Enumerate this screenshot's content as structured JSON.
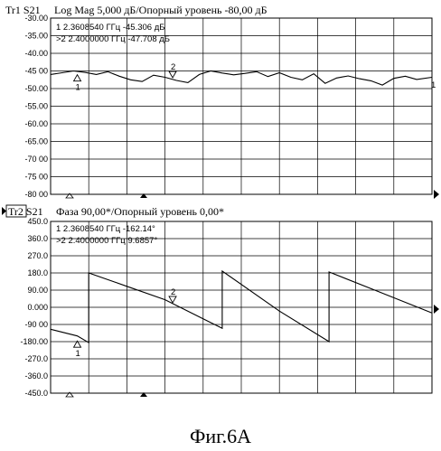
{
  "chart_data": [
    {
      "type": "line",
      "trace_label": "Tr1 S21",
      "title": "Log Mag 5,000 дБ/Опорный уровень -80,00 дБ",
      "y_ticks": [
        "-30.00",
        "-35.00",
        "-40.00",
        "-45 00",
        "-50.00",
        "-55.00",
        "-60.00",
        "-65.00",
        "-70 00",
        "-75 00",
        "-80 00"
      ],
      "ylim": [
        -80,
        -30
      ],
      "grid": true,
      "markers_text": [
        {
          "n": "1",
          "freq": "2.3608540 GHz",
          "text": "1   2.3608540 ГГц -45.306  дБ"
        },
        {
          "n": ">2",
          "freq": "2.4000000 GHz",
          "text": ">2  2.4000000 ГГц -47.708  дБ"
        }
      ],
      "markers": [
        {
          "label": "1",
          "x": 0.07,
          "y": -45.3
        },
        {
          "label": "2",
          "x": 0.32,
          "y": -47.7
        }
      ],
      "right_label": "1",
      "series": [
        {
          "x": [
            0,
            0.03,
            0.06,
            0.09,
            0.12,
            0.15,
            0.18,
            0.21,
            0.24,
            0.27,
            0.3,
            0.33,
            0.36,
            0.39,
            0.42,
            0.45,
            0.48,
            0.51,
            0.54,
            0.57,
            0.6,
            0.63,
            0.66,
            0.69,
            0.72,
            0.75,
            0.78,
            0.81,
            0.84,
            0.87,
            0.9,
            0.93,
            0.96,
            1.0
          ],
          "values": [
            -46,
            -45.5,
            -45,
            -45.4,
            -46,
            -45.2,
            -46.5,
            -47.5,
            -48,
            -46.2,
            -46.8,
            -47.7,
            -48.3,
            -46,
            -45,
            -45.6,
            -46.1,
            -45.7,
            -45.2,
            -46.6,
            -45.5,
            -46.8,
            -47.5,
            -45.8,
            -48.5,
            -47,
            -46.4,
            -47.2,
            -47.8,
            -49,
            -47.1,
            -46.5,
            -47.4,
            -46.8
          ]
        }
      ]
    },
    {
      "type": "line",
      "trace_label": "Tr2 S21",
      "title": "Фаза 90,00*/Опорный уровень 0,00*",
      "y_ticks": [
        "450.0",
        "360.0",
        "270.0",
        "180.0",
        "90.00",
        "0.000",
        "-90 00",
        "-180.00",
        "-270.0",
        "-360.0",
        "-450.0"
      ],
      "ylim": [
        -450,
        450
      ],
      "grid": true,
      "markers_text": [
        {
          "n": "1",
          "freq": "2.3608540 GHz",
          "text": "1   2.3608540 ГГц -162.14°"
        },
        {
          "n": ">2",
          "freq": "2.4000000 GHz",
          "text": ">2  2.4000000 ГГц 9.6857°"
        }
      ],
      "markers": [
        {
          "label": "1",
          "x": 0.07,
          "y": -162.14
        },
        {
          "label": "2",
          "x": 0.32,
          "y": 9.69
        }
      ],
      "series": [
        {
          "x": [
            0,
            0.07,
            0.1,
            0.1001,
            0.2,
            0.3,
            0.4,
            0.45,
            0.4501,
            0.6,
            0.73,
            0.7301,
            0.85,
            1.0
          ],
          "values": [
            -115,
            -150,
            -185,
            180,
            110,
            40,
            -60,
            -110,
            190,
            -20,
            -180,
            185,
            90,
            -30
          ]
        }
      ]
    }
  ],
  "caption": "Фиг.6А"
}
